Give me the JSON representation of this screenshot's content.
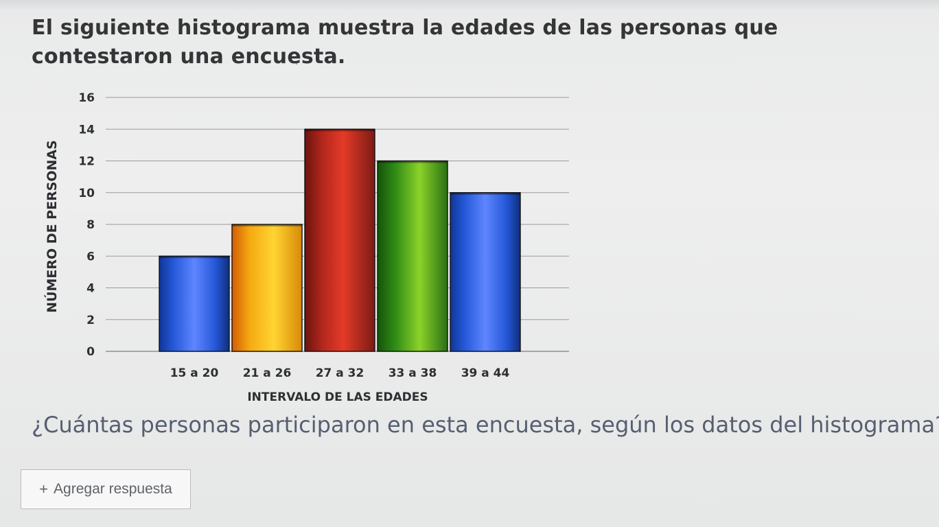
{
  "intro": {
    "text": "El siguiente histograma muestra la edades de las personas que contestaron una encuesta."
  },
  "chart_data": {
    "type": "bar",
    "title": "",
    "xlabel": "INTERVALO DE LAS EDADES",
    "ylabel": "NÚMERO DE PERSONAS",
    "categories": [
      "15 a 20",
      "21 a 26",
      "27 a 32",
      "33 a 38",
      "39 a 44"
    ],
    "values": [
      6,
      8,
      14,
      12,
      10
    ],
    "ylim": [
      0,
      16
    ],
    "yticks": [
      0,
      2,
      4,
      6,
      8,
      10,
      12,
      14,
      16
    ],
    "grid": true,
    "colors": [
      "#1d4fd1",
      "#f4b21a",
      "#b3271c",
      "#4aa31a",
      "#1d4fd1"
    ]
  },
  "question": {
    "text": "¿Cuántas personas participaron en esta encuesta, según los datos del histograma?"
  },
  "answer_button": {
    "icon": "+",
    "label": "Agregar respuesta"
  }
}
